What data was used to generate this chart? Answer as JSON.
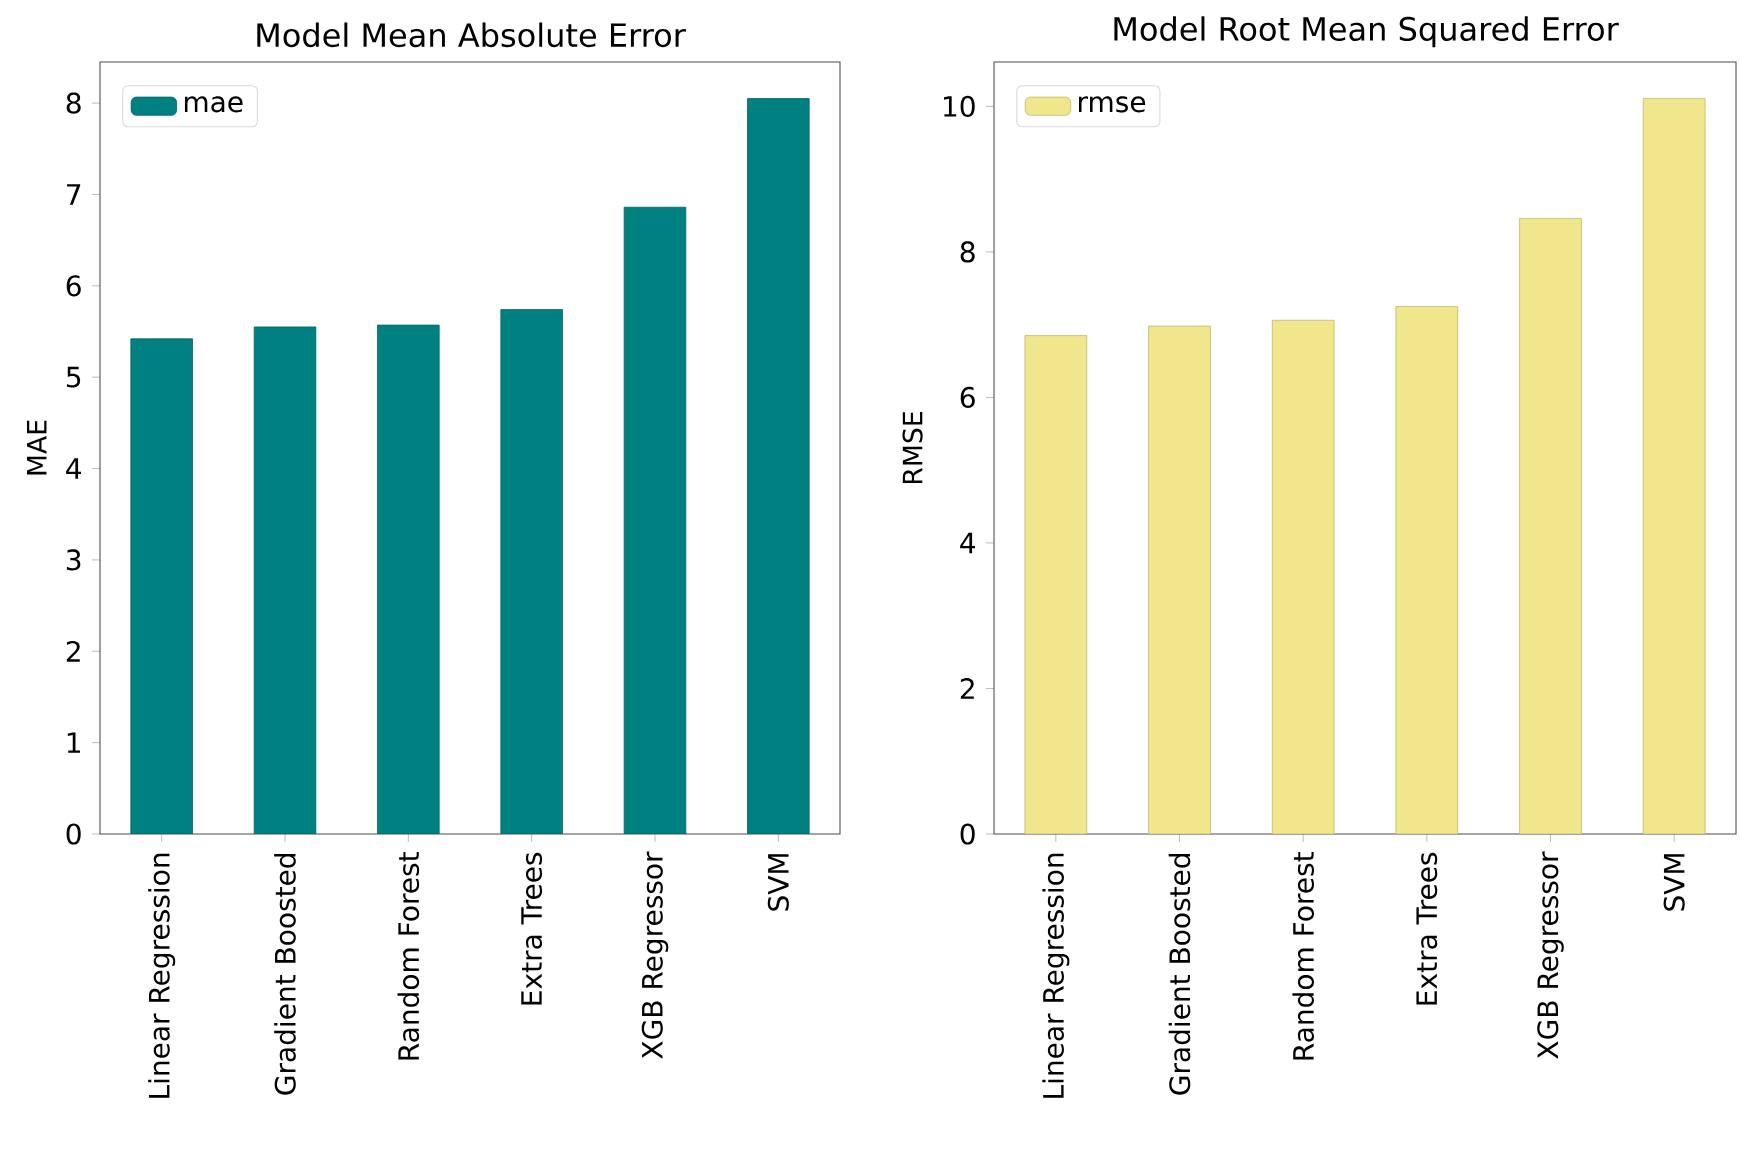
{
  "chart_data": [
    {
      "type": "bar",
      "title": "Model Mean Absolute Error",
      "ylabel": "MAE",
      "categories": [
        "Linear Regression",
        "Gradient Boosted",
        "Random Forest",
        "Extra Trees",
        "XGB Regressor",
        "SVM"
      ],
      "series": [
        {
          "name": "mae",
          "color": "#008080",
          "values": [
            5.42,
            5.55,
            5.57,
            5.74,
            6.86,
            8.05
          ]
        }
      ],
      "ylim": [
        0,
        8.45
      ],
      "yticks": [
        0,
        1,
        2,
        3,
        4,
        5,
        6,
        7,
        8
      ],
      "legend": "top left",
      "grid": false
    },
    {
      "type": "bar",
      "title": "Model Root Mean Squared Error",
      "ylabel": "RMSE",
      "categories": [
        "Linear Regression",
        "Gradient Boosted",
        "Random Forest",
        "Extra Trees",
        "XGB Regressor",
        "SVM"
      ],
      "series": [
        {
          "name": "rmse",
          "color": "#f0e68c",
          "values": [
            6.85,
            6.98,
            7.06,
            7.25,
            8.46,
            10.11
          ]
        }
      ],
      "ylim": [
        0,
        10.61
      ],
      "yticks": [
        0,
        2,
        4,
        6,
        8,
        10
      ],
      "legend": "top left",
      "grid": false
    }
  ]
}
